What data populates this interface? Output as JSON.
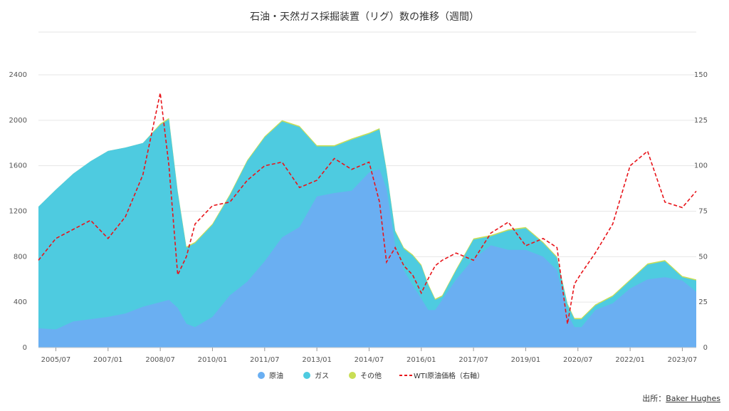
{
  "chart_data": {
    "type": "area",
    "title": "石油・天然ガス採掘装置（リグ）数の推移（週間）",
    "x_tick_labels": [
      "2005/07",
      "2007/01",
      "2008/07",
      "2010/01",
      "2011/07",
      "2013/01",
      "2014/07",
      "2016/01",
      "2017/07",
      "2019/01",
      "2020/07",
      "2022/01",
      "2023/07"
    ],
    "x_tick_values": [
      2005.5,
      2007.0,
      2008.5,
      2010.0,
      2011.5,
      2013.0,
      2014.5,
      2016.0,
      2017.5,
      2019.0,
      2020.5,
      2022.0,
      2023.5
    ],
    "xlim": [
      2005.0,
      2023.9
    ],
    "y_left": {
      "ticks": [
        0,
        400,
        800,
        1200,
        1600,
        2000,
        2400
      ],
      "lim": [
        0,
        2400
      ]
    },
    "y_right": {
      "ticks": [
        0,
        25,
        50,
        75,
        100,
        125,
        150
      ],
      "lim": [
        0,
        150
      ]
    },
    "legend": [
      "原油",
      "ガス",
      "その他",
      "WTI原油価格（右軸）"
    ],
    "legend_placement": "bottom-center",
    "colors": {
      "oil": "#6aaff2",
      "gas": "#4ecbe0",
      "other": "#c9de55",
      "wti": "#e8141a"
    },
    "x": [
      2005.0,
      2005.5,
      2006.0,
      2006.5,
      2007.0,
      2007.5,
      2008.0,
      2008.5,
      2008.75,
      2009.0,
      2009.25,
      2009.5,
      2010.0,
      2010.5,
      2011.0,
      2011.5,
      2012.0,
      2012.5,
      2013.0,
      2013.5,
      2014.0,
      2014.5,
      2014.8,
      2015.0,
      2015.25,
      2015.5,
      2015.75,
      2016.0,
      2016.2,
      2016.4,
      2016.6,
      2017.0,
      2017.5,
      2018.0,
      2018.5,
      2019.0,
      2019.5,
      2019.9,
      2020.2,
      2020.4,
      2020.6,
      2021.0,
      2021.5,
      2022.0,
      2022.5,
      2023.0,
      2023.5,
      2023.9
    ],
    "series": [
      {
        "name": "原油",
        "values": [
          170,
          160,
          230,
          250,
          270,
          300,
          360,
          400,
          420,
          350,
          210,
          180,
          270,
          460,
          580,
          760,
          970,
          1060,
          1330,
          1360,
          1380,
          1540,
          1570,
          1400,
          900,
          680,
          550,
          430,
          330,
          330,
          420,
          600,
          780,
          900,
          860,
          860,
          800,
          680,
          300,
          180,
          180,
          330,
          390,
          520,
          600,
          620,
          590,
          490
        ]
      },
      {
        "name": "ガス",
        "values": [
          1240,
          1390,
          1530,
          1640,
          1730,
          1760,
          1800,
          1960,
          2010,
          1370,
          880,
          920,
          1080,
          1340,
          1640,
          1850,
          1990,
          1940,
          1770,
          1770,
          1830,
          1880,
          1920,
          1560,
          1020,
          870,
          810,
          720,
          550,
          420,
          450,
          680,
          950,
          980,
          1030,
          1050,
          920,
          790,
          380,
          250,
          250,
          370,
          450,
          590,
          730,
          760,
          620,
          590
        ]
      },
      {
        "name": "その他",
        "values": [
          1240,
          1390,
          1530,
          1640,
          1730,
          1760,
          1800,
          1970,
          2020,
          1380,
          890,
          930,
          1090,
          1350,
          1650,
          1860,
          2000,
          1950,
          1780,
          1780,
          1840,
          1890,
          1930,
          1570,
          1030,
          880,
          820,
          730,
          560,
          430,
          460,
          690,
          960,
          990,
          1040,
          1060,
          930,
          800,
          390,
          260,
          260,
          380,
          460,
          600,
          740,
          770,
          630,
          600
        ]
      },
      {
        "name": "WTI原油価格（右軸）",
        "values": [
          48,
          60,
          65,
          70,
          60,
          72,
          95,
          140,
          100,
          40,
          50,
          68,
          78,
          80,
          92,
          100,
          102,
          88,
          92,
          104,
          98,
          102,
          80,
          47,
          55,
          45,
          40,
          30,
          38,
          45,
          48,
          52,
          48,
          63,
          69,
          56,
          60,
          55,
          13,
          35,
          41,
          52,
          68,
          100,
          108,
          80,
          77,
          86
        ]
      }
    ]
  },
  "source": {
    "label": "出所：",
    "link_text": "Baker Hughes"
  }
}
